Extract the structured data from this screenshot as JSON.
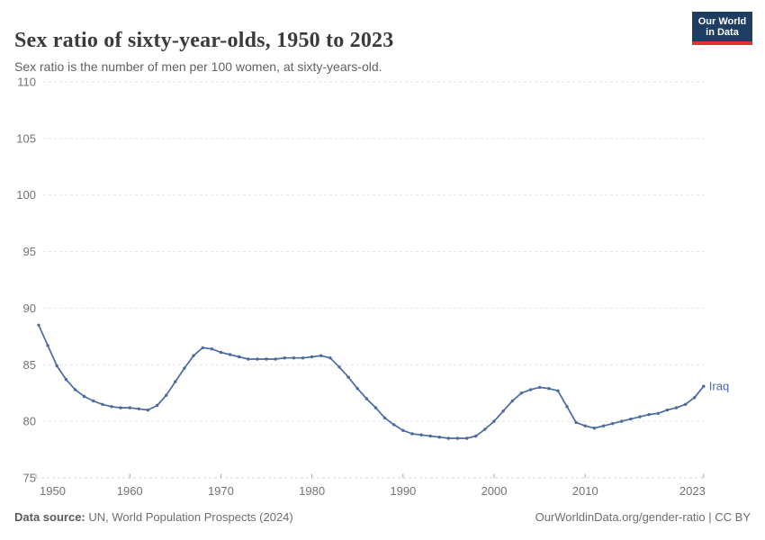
{
  "header": {
    "title": "Sex ratio of sixty-year-olds, 1950 to 2023",
    "subtitle": "Sex ratio is the number of men per 100 women, at sixty-years-old.",
    "logo": {
      "line1": "Our World",
      "line2": "in Data",
      "bg_color": "#1d3d63",
      "accent_color": "#dc352c"
    }
  },
  "footer": {
    "source_label": "Data source:",
    "source_text": "UN, World Population Prospects (2024)",
    "rights": "OurWorldinData.org/gender-ratio | CC BY"
  },
  "chart_data": {
    "type": "line",
    "title": "Sex ratio of sixty-year-olds, 1950 to 2023",
    "subtitle": "Sex ratio is the number of men per 100 women, at sixty-years-old.",
    "xlabel": "",
    "ylabel": "",
    "xlim": [
      1950,
      2023
    ],
    "ylim": [
      75,
      110
    ],
    "x_ticks": [
      1950,
      1960,
      1970,
      1980,
      1990,
      2000,
      2010,
      2023
    ],
    "y_ticks": [
      75,
      80,
      85,
      90,
      95,
      100,
      105,
      110
    ],
    "grid": "horizontal-dashed",
    "grid_color": "#e2e2e2",
    "axis_label_color": "#737373",
    "legend_position": "end-of-line-label",
    "entity_label": "Iraq",
    "series": [
      {
        "name": "Iraq",
        "color": "#4a6aa0",
        "x": [
          1950,
          1951,
          1952,
          1953,
          1954,
          1955,
          1956,
          1957,
          1958,
          1959,
          1960,
          1961,
          1962,
          1963,
          1964,
          1965,
          1966,
          1967,
          1968,
          1969,
          1970,
          1971,
          1972,
          1973,
          1974,
          1975,
          1976,
          1977,
          1978,
          1979,
          1980,
          1981,
          1982,
          1983,
          1984,
          1985,
          1986,
          1987,
          1988,
          1989,
          1990,
          1991,
          1992,
          1993,
          1994,
          1995,
          1996,
          1997,
          1998,
          1999,
          2000,
          2001,
          2002,
          2003,
          2004,
          2005,
          2006,
          2007,
          2008,
          2009,
          2010,
          2011,
          2012,
          2013,
          2014,
          2015,
          2016,
          2017,
          2018,
          2019,
          2020,
          2021,
          2022,
          2023
        ],
        "values": [
          88.5,
          86.7,
          84.9,
          83.7,
          82.8,
          82.2,
          81.8,
          81.5,
          81.3,
          81.2,
          81.2,
          81.1,
          81.0,
          81.4,
          82.3,
          83.5,
          84.7,
          85.8,
          86.5,
          86.4,
          86.1,
          85.9,
          85.7,
          85.5,
          85.5,
          85.5,
          85.5,
          85.6,
          85.6,
          85.6,
          85.7,
          85.8,
          85.6,
          84.8,
          83.9,
          82.9,
          82.0,
          81.2,
          80.3,
          79.7,
          79.2,
          78.9,
          78.8,
          78.7,
          78.6,
          78.5,
          78.5,
          78.5,
          78.7,
          79.3,
          80.0,
          80.9,
          81.8,
          82.5,
          82.8,
          83.0,
          82.9,
          82.7,
          81.3,
          79.9,
          79.6,
          79.4,
          79.6,
          79.8,
          80.0,
          80.2,
          80.4,
          80.6,
          80.7,
          81.0,
          81.2,
          81.5,
          82.1,
          83.1
        ]
      }
    ]
  }
}
